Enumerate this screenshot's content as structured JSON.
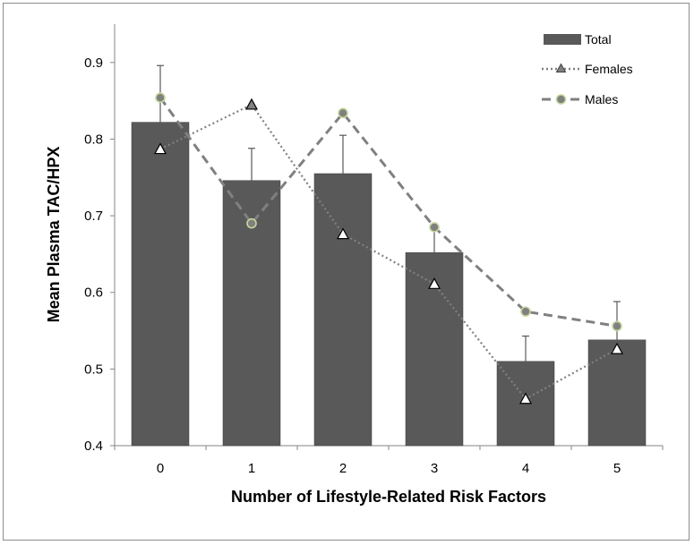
{
  "chart_data": {
    "type": "bar",
    "title": "",
    "xlabel": "Number of Lifestyle-Related Risk Factors",
    "ylabel": "Mean Plasma TAC/HPX",
    "categories": [
      "0",
      "1",
      "2",
      "3",
      "4",
      "5"
    ],
    "ylim": [
      0.4,
      0.95
    ],
    "yticks": [
      "0.4",
      "0.5",
      "0.6",
      "0.7",
      "0.8",
      "0.9"
    ],
    "grid": false,
    "legend_position": "top-right",
    "series": [
      {
        "name": "Total",
        "kind": "bar",
        "color": "#595959",
        "values": [
          0.822,
          0.746,
          0.755,
          0.652,
          0.51,
          0.538
        ],
        "error_upper": [
          0.896,
          0.788,
          0.805,
          0.684,
          0.543,
          0.588
        ]
      },
      {
        "name": "Females",
        "kind": "line-dotted-triangle",
        "color": "#808080",
        "values": [
          0.787,
          0.845,
          0.676,
          0.611,
          0.461,
          0.526
        ]
      },
      {
        "name": "Males",
        "kind": "line-dashed-circle",
        "color": "#808080",
        "marker_edge": "#c4d79b",
        "values": [
          0.854,
          0.69,
          0.834,
          0.685,
          0.575,
          0.556
        ]
      }
    ]
  }
}
